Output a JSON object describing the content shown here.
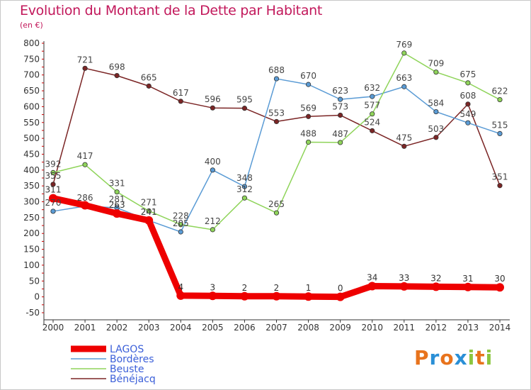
{
  "title": "Evolution du Montant de la Dette par Habitant",
  "unit_label": "(en €)",
  "logo": {
    "text": "Proxiti"
  },
  "chart_data": {
    "type": "line",
    "x": [
      "2000",
      "2001",
      "2002",
      "2003",
      "2004",
      "2005",
      "2006",
      "2007",
      "2008",
      "2009",
      "2010",
      "2011",
      "2012",
      "2013",
      "2014"
    ],
    "ylim": [
      -50,
      800
    ],
    "yticks": [
      -50,
      0,
      50,
      100,
      150,
      200,
      250,
      300,
      350,
      400,
      450,
      500,
      550,
      600,
      650,
      700,
      750,
      800
    ],
    "grid": false,
    "legend_position": "bottom-left",
    "series": [
      {
        "name": "LAGOS",
        "color": "#ee0000",
        "width": 9,
        "label_color": "#333333",
        "values": [
          311,
          289,
          263,
          241,
          4,
          3,
          2,
          2,
          1,
          0,
          34,
          33,
          32,
          31,
          30
        ],
        "labels": [
          "311",
          "",
          "263",
          "241",
          "4",
          "3",
          "2",
          "2",
          "1",
          "0",
          "34",
          "33",
          "32",
          "31",
          "30"
        ]
      },
      {
        "name": "Bordères",
        "color": "#5a9bd5",
        "width": 1.5,
        "label_color": "#444444",
        "values": [
          270,
          286,
          281,
          241,
          205,
          400,
          348,
          688,
          670,
          623,
          632,
          663,
          584,
          549,
          515
        ],
        "labels": [
          "270",
          "286",
          "281",
          "241",
          "205",
          "400",
          "348",
          "688",
          "670",
          "623",
          "632",
          "663",
          "584",
          "549",
          "515"
        ]
      },
      {
        "name": "Beuste",
        "color": "#8fd45a",
        "width": 1.5,
        "label_color": "#444444",
        "values": [
          392,
          417,
          331,
          271,
          228,
          212,
          312,
          265,
          488,
          487,
          577,
          769,
          709,
          675,
          622
        ],
        "labels": [
          "392",
          "417",
          "331",
          "271",
          "228",
          "212",
          "312",
          "265",
          "488",
          "487",
          "577",
          "769",
          "709",
          "675",
          "622"
        ]
      },
      {
        "name": "Bénéjacq",
        "color": "#7b2525",
        "width": 1.5,
        "label_color": "#444444",
        "values": [
          355,
          721,
          698,
          665,
          617,
          596,
          595,
          553,
          569,
          573,
          524,
          475,
          503,
          608,
          351
        ],
        "labels": [
          "355",
          "721",
          "698",
          "665",
          "617",
          "596",
          "595",
          "553",
          "569",
          "573",
          "524",
          "475",
          "503",
          "608",
          "351"
        ]
      }
    ]
  }
}
